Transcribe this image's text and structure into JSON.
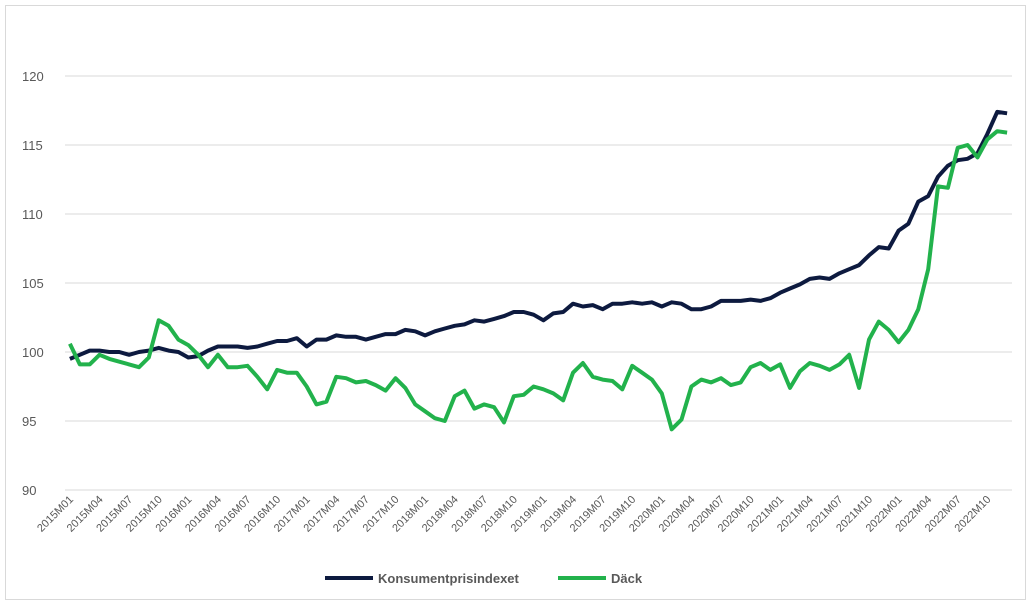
{
  "chart_data": {
    "type": "line",
    "categories": [
      "2015M01",
      null,
      null,
      "2015M04",
      null,
      null,
      "2015M07",
      null,
      null,
      "2015M10",
      null,
      null,
      "2016M01",
      null,
      null,
      "2016M04",
      null,
      null,
      "2016M07",
      null,
      null,
      "2016M10",
      null,
      null,
      "2017M01",
      null,
      null,
      "2017M04",
      null,
      null,
      "2017M07",
      null,
      null,
      "2017M10",
      null,
      null,
      "2018M01",
      null,
      null,
      "2018M04",
      null,
      null,
      "2018M07",
      null,
      null,
      "2018M10",
      null,
      null,
      "2019M01",
      null,
      null,
      "2019M04",
      null,
      null,
      "2019M07",
      null,
      null,
      "2019M10",
      null,
      null,
      "2020M01",
      null,
      null,
      "2020M04",
      null,
      null,
      "2020M07",
      null,
      null,
      "2020M10",
      null,
      null,
      "2021M01",
      null,
      null,
      "2021M04",
      null,
      null,
      "2021M07",
      null,
      null,
      "2021M10",
      null,
      null,
      "2022M01",
      null,
      null,
      "2022M04",
      null,
      null,
      "2022M07",
      null,
      null,
      "2022M10",
      null,
      null
    ],
    "series": [
      {
        "name": "Konsumentprisindexet",
        "color": "#0d1a3f",
        "values": [
          99.5,
          99.8,
          100.1,
          100.1,
          100.0,
          100.0,
          99.8,
          100.0,
          100.1,
          100.3,
          100.1,
          100.0,
          99.6,
          99.7,
          100.1,
          100.4,
          100.4,
          100.4,
          100.3,
          100.4,
          100.6,
          100.8,
          100.8,
          101.0,
          100.4,
          100.9,
          100.9,
          101.2,
          101.1,
          101.1,
          100.9,
          101.1,
          101.3,
          101.3,
          101.6,
          101.5,
          101.2,
          101.5,
          101.7,
          101.9,
          102.0,
          102.3,
          102.2,
          102.4,
          102.6,
          102.9,
          102.9,
          102.7,
          102.3,
          102.8,
          102.9,
          103.5,
          103.3,
          103.4,
          103.1,
          103.5,
          103.5,
          103.6,
          103.5,
          103.6,
          103.3,
          103.6,
          103.5,
          103.1,
          103.1,
          103.3,
          103.7,
          103.7,
          103.7,
          103.8,
          103.7,
          103.9,
          104.3,
          104.6,
          104.9,
          105.3,
          105.4,
          105.3,
          105.7,
          106.0,
          106.3,
          107.0,
          107.6,
          107.5,
          108.8,
          109.3,
          110.9,
          111.3,
          112.7,
          113.5,
          113.9,
          114.0,
          114.4,
          115.8,
          117.4,
          117.3
        ]
      },
      {
        "name": "Däck",
        "color": "#22b24c",
        "values": [
          100.6,
          99.1,
          99.1,
          99.8,
          99.5,
          99.3,
          99.1,
          98.9,
          99.6,
          102.3,
          101.9,
          100.9,
          100.5,
          99.8,
          98.9,
          99.8,
          98.9,
          98.9,
          99.0,
          98.2,
          97.3,
          98.7,
          98.5,
          98.5,
          97.5,
          96.2,
          96.4,
          98.2,
          98.1,
          97.8,
          97.9,
          97.6,
          97.2,
          98.1,
          97.4,
          96.2,
          95.7,
          95.2,
          95.0,
          96.8,
          97.2,
          95.9,
          96.2,
          96.0,
          94.9,
          96.8,
          96.9,
          97.5,
          97.3,
          97.0,
          96.5,
          98.5,
          99.2,
          98.2,
          98.0,
          97.9,
          97.3,
          99.0,
          98.5,
          98.0,
          97.0,
          94.4,
          95.1,
          97.5,
          98.0,
          97.8,
          98.1,
          97.6,
          97.8,
          98.9,
          99.2,
          98.7,
          99.1,
          97.4,
          98.6,
          99.2,
          99.0,
          98.7,
          99.1,
          99.8,
          97.4,
          100.9,
          102.2,
          101.6,
          100.7,
          101.6,
          103.1,
          106.0,
          112.0,
          111.9,
          114.8,
          115.0,
          114.1,
          115.4,
          116.0,
          115.9
        ]
      }
    ],
    "ylim": [
      90,
      120
    ],
    "yticks": [
      90,
      95,
      100,
      105,
      110,
      115,
      120
    ],
    "grid": true,
    "legend": "bottom"
  }
}
